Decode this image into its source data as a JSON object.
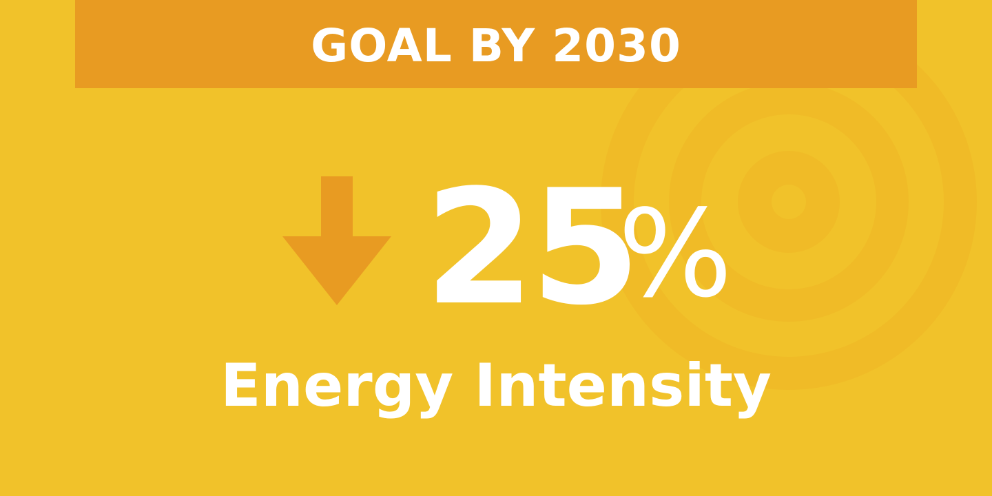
{
  "banner": {
    "title": "GOAL BY 2030"
  },
  "stat": {
    "value": "25",
    "unit": "%",
    "direction_icon": "down-arrow-icon"
  },
  "metric": {
    "label": "Energy Intensity"
  },
  "decoration": {
    "icon": "target-icon"
  },
  "colors": {
    "background": "#F1C22A",
    "banner": "#E89B22",
    "arrow": "#E89B22",
    "text": "#FFFFFF",
    "target_rings": "#EEB826"
  }
}
